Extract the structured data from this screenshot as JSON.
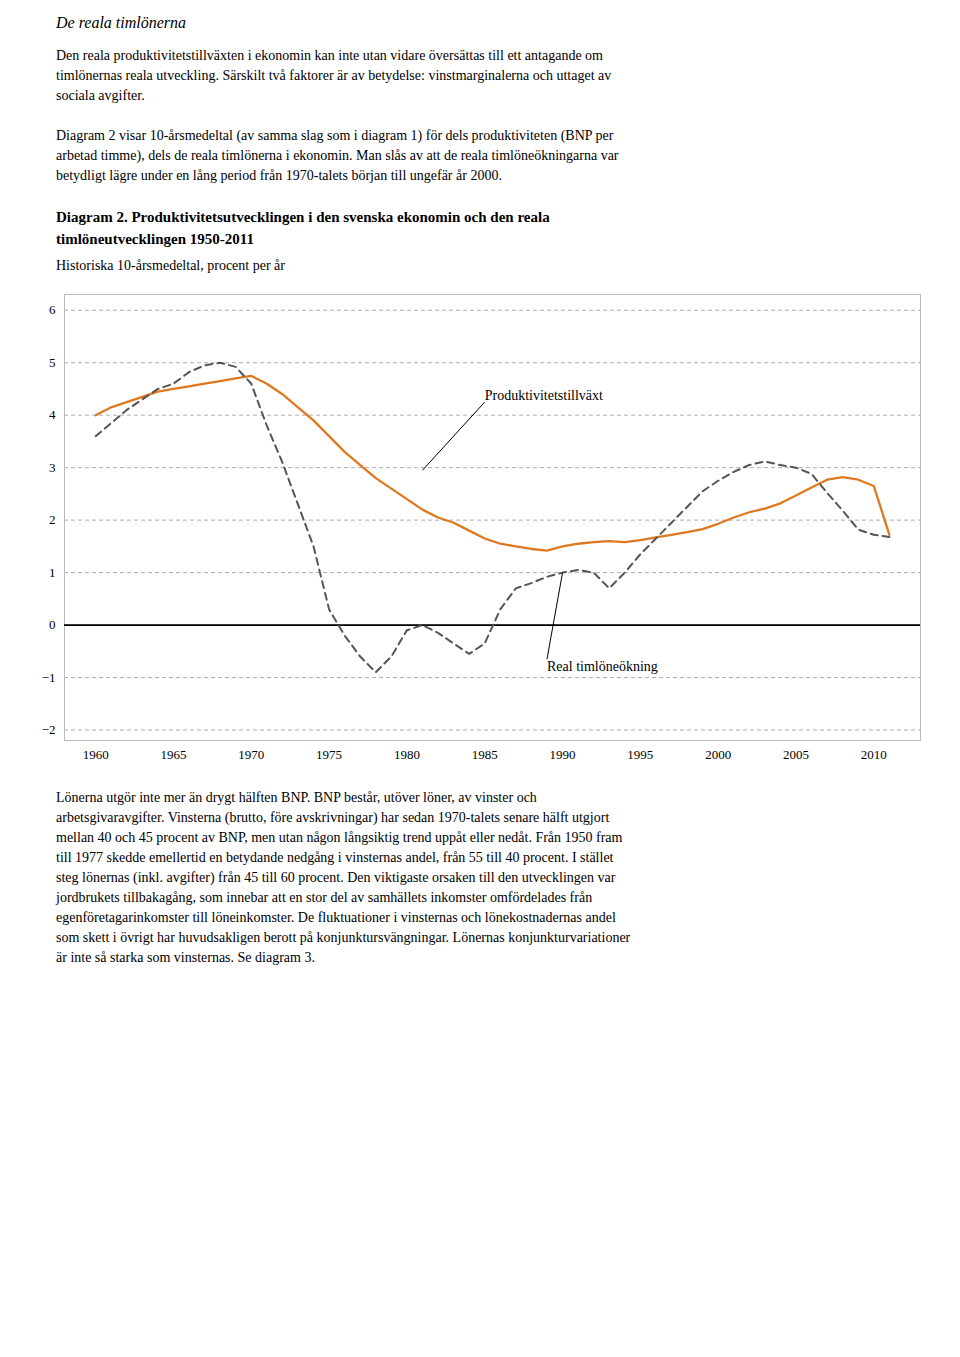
{
  "heading": "De reala timlönerna",
  "paragraphs": [
    [
      "Den reala produktivitetstillväxten i ekonomin kan inte utan vidare översättas till ett antagande om",
      "timlönernas reala utveckling. Särskilt två faktorer är av betydelse: vinstmarginalerna och uttaget av",
      "sociala avgifter."
    ],
    [
      "Diagram 2 visar 10-årsmedeltal (av samma slag som i diagram 1) för dels produktiviteten (BNP per",
      "arbetad timme), dels de reala timlönerna i ekonomin. Man slås av att de reala timlöneökningarna var",
      "betydligt lägre under en lång period från 1970-talets början till ungefär år 2000."
    ]
  ],
  "chart_data": {
    "type": "line",
    "title": "Diagram 2. Produktivitetsutvecklingen i den svenska ekonomin och den reala\ntimlöneutvecklingen 1950-2011",
    "subtitle": "Historiska 10-årsmedeltal, procent per år",
    "x": [
      1960,
      1961,
      1962,
      1963,
      1964,
      1965,
      1966,
      1967,
      1968,
      1969,
      1970,
      1971,
      1972,
      1973,
      1974,
      1975,
      1976,
      1977,
      1978,
      1979,
      1980,
      1981,
      1982,
      1983,
      1984,
      1985,
      1986,
      1987,
      1988,
      1989,
      1990,
      1991,
      1992,
      1993,
      1994,
      1995,
      1996,
      1997,
      1998,
      1999,
      2000,
      2001,
      2002,
      2003,
      2004,
      2005,
      2006,
      2007,
      2008,
      2009,
      2010,
      2011
    ],
    "series": [
      {
        "color": "#E07820",
        "line_style": "solid",
        "values": [
          4.0,
          4.15,
          4.25,
          4.35,
          4.45,
          4.5,
          4.55,
          4.6,
          4.65,
          4.7,
          4.75,
          4.6,
          4.4,
          4.15,
          3.9,
          3.6,
          3.3,
          3.05,
          2.8,
          2.6,
          2.4,
          2.2,
          2.05,
          1.95,
          1.8,
          1.65,
          1.55,
          1.5,
          1.45,
          1.42,
          1.5,
          1.55,
          1.58,
          1.6,
          1.58,
          1.62,
          1.67,
          1.72,
          1.77,
          1.83,
          1.93,
          2.05,
          2.15,
          2.22,
          2.32,
          2.47,
          2.62,
          2.77,
          2.82,
          2.77,
          2.65,
          1.72
        ]
      },
      {
        "color": "#555555",
        "line_style": "dashed",
        "values": [
          3.6,
          3.85,
          4.1,
          4.3,
          4.5,
          4.6,
          4.82,
          4.95,
          5.0,
          4.92,
          4.6,
          3.8,
          3.1,
          2.3,
          1.5,
          0.3,
          -0.2,
          -0.6,
          -0.9,
          -0.6,
          -0.1,
          0.0,
          -0.15,
          -0.35,
          -0.55,
          -0.35,
          0.3,
          0.7,
          0.8,
          0.92,
          1.0,
          1.05,
          1.0,
          0.7,
          1.0,
          1.35,
          1.65,
          1.95,
          2.25,
          2.55,
          2.75,
          2.92,
          3.05,
          3.12,
          3.05,
          3.0,
          2.88,
          2.52,
          2.18,
          1.82,
          1.72,
          1.68
        ]
      }
    ],
    "annotations": [
      {
        "text": "Produktivitetstillväxt",
        "x": 1981,
        "y": 2.95,
        "text_x": 1985,
        "text_y": 4.25
      },
      {
        "text": "Real timlöneökning",
        "x": 1990,
        "y": 1.0,
        "text_x": 1989,
        "text_y": -0.65
      }
    ],
    "xlim": [
      1958,
      2013
    ],
    "ylim": [
      -2.2,
      6.3
    ],
    "xticks": [
      1960,
      1965,
      1970,
      1975,
      1980,
      1985,
      1990,
      1995,
      2000,
      2005,
      2010
    ],
    "yticks": [
      -2,
      -1,
      0,
      1,
      2,
      3,
      4,
      5,
      6
    ],
    "grid": true
  },
  "paragraphs_after": [
    [
      "Lönerna utgör inte mer än drygt hälften BNP. BNP består, utöver löner, av vinster och",
      "arbetsgivaravgifter. Vinsterna (brutto, före avskrivningar) har sedan 1970-talets senare hälft utgjort",
      "mellan 40 och 45 procent av BNP, men utan någon långsiktig trend uppåt eller nedåt. Från 1950 fram",
      "till 1977 skedde emellertid en betydande nedgång i vinsternas andel, från 55 till 40 procent. I stället",
      "steg lönernas (inkl. avgifter) från 45 till 60 procent. Den viktigaste orsaken till den utvecklingen var",
      "jordbrukets tillbakagång, som innebar att en stor del av samhällets inkomster omfördelades från",
      "egenföretagarinkomster till löneinkomster. De fluktuationer i vinsternas och lönekostnadernas andel",
      "som skett i övrigt har huvudsakligen berott på konjunktursvängningar. Lönernas konjunkturvariationer",
      "är inte så starka som vinsternas. Se diagram 3."
    ]
  ]
}
